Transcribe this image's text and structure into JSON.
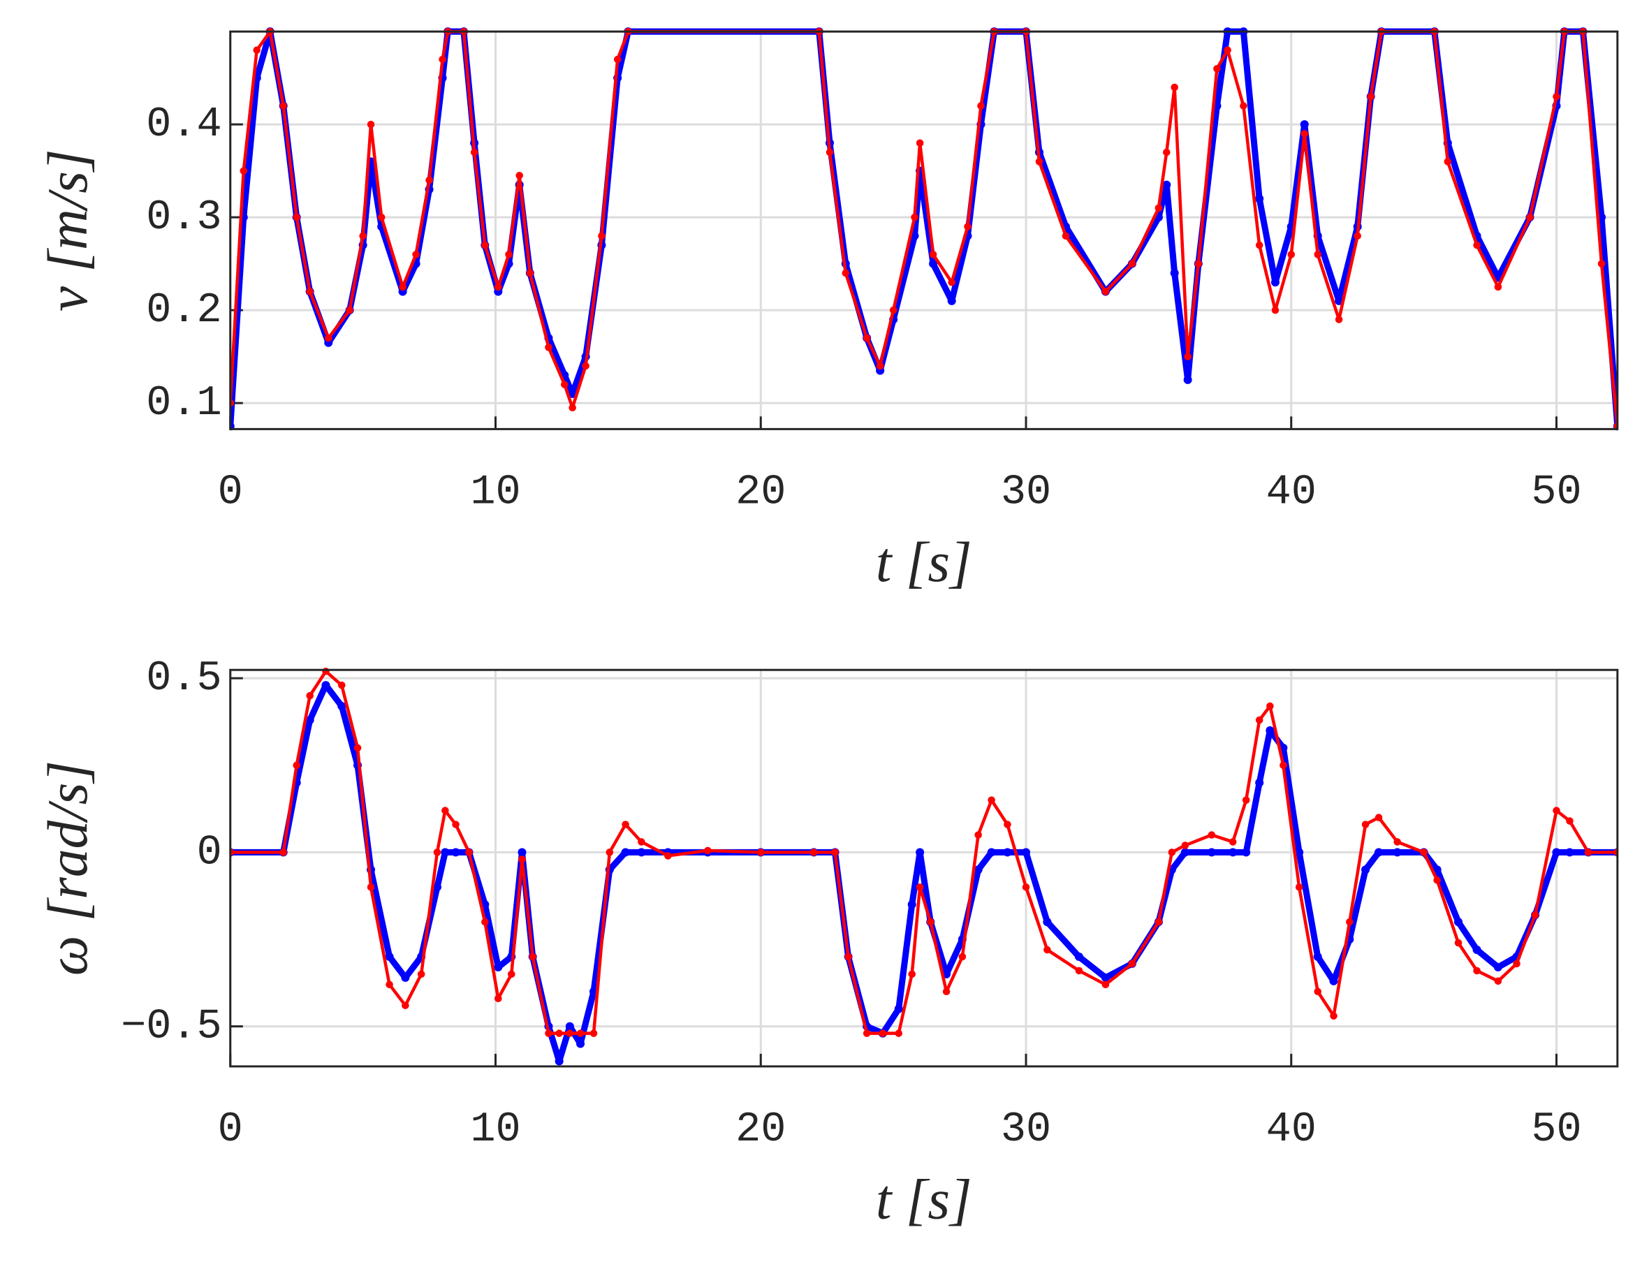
{
  "chart_data": [
    {
      "type": "line",
      "xlabel": "t [s]",
      "ylabel": "v [m/s]",
      "grid": true,
      "xlim": [
        0,
        52.3
      ],
      "ylim": [
        0.072,
        0.5
      ],
      "xticks": [
        0,
        10,
        20,
        30,
        40,
        50
      ],
      "yticks": [
        0.1,
        0.2,
        0.3,
        0.4
      ],
      "x": [
        0,
        0.5,
        1,
        1.5,
        2,
        2.5,
        3,
        3.7,
        4.5,
        5,
        5.3,
        5.7,
        6.5,
        7,
        7.5,
        8,
        8.2,
        8.8,
        9.2,
        9.6,
        10.1,
        10.5,
        10.9,
        11.3,
        12,
        12.6,
        12.9,
        13.4,
        14,
        14.6,
        15,
        22.2,
        22.6,
        23.2,
        24,
        24.5,
        25,
        25.8,
        26,
        26.5,
        27.2,
        27.8,
        28.3,
        28.8,
        30,
        30.5,
        31.5,
        33,
        34,
        35,
        35.3,
        35.6,
        36.1,
        36.5,
        37.2,
        37.6,
        38.2,
        38.8,
        39.4,
        40,
        40.5,
        41,
        41.8,
        42.5,
        43,
        43.4,
        45.4,
        45.9,
        47,
        47.8,
        49,
        50,
        50.3,
        51,
        51.7,
        52.3
      ],
      "series": [
        {
          "color": "#0000ff",
          "values": [
            0.075,
            0.3,
            0.45,
            0.5,
            0.42,
            0.3,
            0.22,
            0.165,
            0.2,
            0.27,
            0.36,
            0.29,
            0.22,
            0.25,
            0.33,
            0.45,
            0.5,
            0.5,
            0.38,
            0.27,
            0.22,
            0.25,
            0.335,
            0.24,
            0.17,
            0.13,
            0.11,
            0.15,
            0.27,
            0.45,
            0.5,
            0.5,
            0.38,
            0.25,
            0.17,
            0.135,
            0.19,
            0.28,
            0.35,
            0.25,
            0.21,
            0.28,
            0.4,
            0.5,
            0.5,
            0.37,
            0.29,
            0.22,
            0.25,
            0.3,
            0.335,
            0.24,
            0.125,
            0.25,
            0.42,
            0.5,
            0.5,
            0.32,
            0.23,
            0.29,
            0.4,
            0.28,
            0.21,
            0.29,
            0.43,
            0.5,
            0.5,
            0.38,
            0.28,
            0.235,
            0.3,
            0.42,
            0.5,
            0.5,
            0.3,
            0.075
          ]
        },
        {
          "color": "#ff0000",
          "values": [
            0.1,
            0.35,
            0.48,
            0.5,
            0.42,
            0.3,
            0.22,
            0.17,
            0.2,
            0.28,
            0.4,
            0.3,
            0.225,
            0.26,
            0.34,
            0.47,
            0.5,
            0.5,
            0.37,
            0.27,
            0.225,
            0.26,
            0.345,
            0.24,
            0.16,
            0.12,
            0.095,
            0.14,
            0.28,
            0.47,
            0.5,
            0.5,
            0.37,
            0.24,
            0.17,
            0.14,
            0.2,
            0.3,
            0.38,
            0.26,
            0.23,
            0.29,
            0.42,
            0.5,
            0.5,
            0.36,
            0.28,
            0.22,
            0.25,
            0.31,
            0.37,
            0.44,
            0.15,
            0.25,
            0.46,
            0.48,
            0.42,
            0.27,
            0.2,
            0.26,
            0.39,
            0.26,
            0.19,
            0.28,
            0.43,
            0.5,
            0.5,
            0.36,
            0.27,
            0.225,
            0.3,
            0.43,
            0.5,
            0.5,
            0.25,
            0.075
          ]
        }
      ]
    },
    {
      "type": "line",
      "xlabel": "t [s]",
      "ylabel": "ω [rad/s]",
      "grid": true,
      "xlim": [
        0,
        52.3
      ],
      "ylim": [
        -0.615,
        0.524
      ],
      "xticks": [
        0,
        10,
        20,
        30,
        40,
        50
      ],
      "yticks": [
        {
          "value": -0.5,
          "label": "−0.5"
        },
        0,
        0.5
      ],
      "x": [
        0,
        2,
        2.5,
        3,
        3.6,
        4.2,
        4.8,
        5.3,
        6,
        6.6,
        7.2,
        7.8,
        8.1,
        8.5,
        9,
        9.6,
        10.1,
        10.6,
        11,
        11.4,
        12,
        12.4,
        12.8,
        13.2,
        13.7,
        14.3,
        14.9,
        15.5,
        16.5,
        18,
        20,
        22,
        22.8,
        23.3,
        24,
        24.6,
        25.2,
        25.7,
        26,
        26.4,
        27,
        27.6,
        28.2,
        28.7,
        29.3,
        30,
        30.8,
        32,
        33,
        34,
        35,
        35.5,
        36,
        37,
        37.8,
        38.3,
        38.8,
        39.2,
        39.7,
        40.3,
        41,
        41.6,
        42.2,
        42.8,
        43.3,
        44,
        45,
        45.5,
        46.3,
        47,
        47.8,
        48.5,
        49.2,
        50,
        50.5,
        51.2,
        52.3
      ],
      "series": [
        {
          "color": "#0000ff",
          "values": [
            0,
            0,
            0.2,
            0.38,
            0.48,
            0.42,
            0.25,
            -0.05,
            -0.3,
            -0.36,
            -0.3,
            -0.1,
            0,
            0,
            0,
            -0.15,
            -0.33,
            -0.3,
            0,
            -0.3,
            -0.5,
            -0.6,
            -0.5,
            -0.55,
            -0.4,
            -0.05,
            0,
            0,
            0,
            0,
            0,
            0,
            0,
            -0.3,
            -0.5,
            -0.52,
            -0.45,
            -0.15,
            0,
            -0.2,
            -0.35,
            -0.25,
            -0.05,
            0,
            0,
            0,
            -0.2,
            -0.3,
            -0.36,
            -0.32,
            -0.2,
            -0.05,
            0,
            0,
            0,
            0,
            0.2,
            0.35,
            0.3,
            0,
            -0.3,
            -0.37,
            -0.25,
            -0.05,
            0,
            0,
            0,
            -0.05,
            -0.2,
            -0.28,
            -0.33,
            -0.3,
            -0.18,
            0,
            0,
            0,
            0
          ]
        },
        {
          "color": "#ff0000",
          "values": [
            0,
            0,
            0.25,
            0.45,
            0.52,
            0.48,
            0.3,
            -0.1,
            -0.38,
            -0.44,
            -0.35,
            0,
            0.12,
            0.08,
            0,
            -0.2,
            -0.42,
            -0.35,
            -0.02,
            -0.3,
            -0.52,
            -0.52,
            -0.52,
            -0.52,
            -0.52,
            0,
            0.08,
            0.03,
            -0.01,
            0.005,
            0,
            0,
            0,
            -0.3,
            -0.52,
            -0.52,
            -0.52,
            -0.35,
            -0.1,
            -0.2,
            -0.4,
            -0.3,
            0.05,
            0.15,
            0.08,
            -0.1,
            -0.28,
            -0.34,
            -0.38,
            -0.32,
            -0.2,
            0,
            0.02,
            0.05,
            0.03,
            0.15,
            0.38,
            0.42,
            0.25,
            -0.1,
            -0.4,
            -0.47,
            -0.2,
            0.08,
            0.1,
            0.03,
            0,
            -0.08,
            -0.26,
            -0.34,
            -0.37,
            -0.32,
            -0.18,
            0.12,
            0.09,
            0,
            0
          ]
        }
      ]
    }
  ]
}
